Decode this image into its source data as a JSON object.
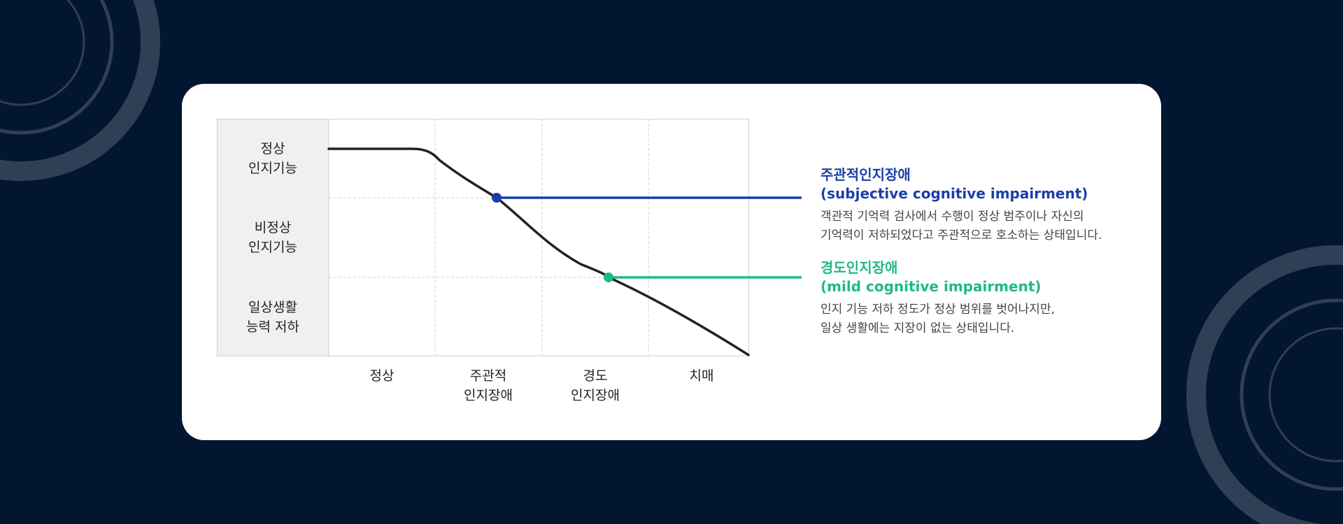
{
  "rows": [
    "정상\n인지기능",
    "비정상\n인지기능",
    "일상생활\n능력 저하"
  ],
  "stages": [
    "정상",
    "주관적\n인지장애",
    "경도\n인지장애",
    "치매"
  ],
  "annotations": [
    {
      "title": "주관적인지장애\n(subjective cognitive impairment)",
      "description": "객관적 기억력 검사에서 수행이 정상 범주이나 자신의\n기억력이 저하되었다고 주관적으로 호소하는 상태입니다.",
      "color": "#1a3eaa"
    },
    {
      "title": "경도인지장애\n(mild cognitive impairment)",
      "description": "인지 기능 저하 정도가 정상 범위를 벗어나지만,\n일상 생활에는 지장이 없는 상태입니다.",
      "color": "#20b88a"
    }
  ],
  "colors": {
    "background": "#031631",
    "card": "#ffffff",
    "curve": "#222222",
    "row_label_bg": "#f0f0f0"
  }
}
